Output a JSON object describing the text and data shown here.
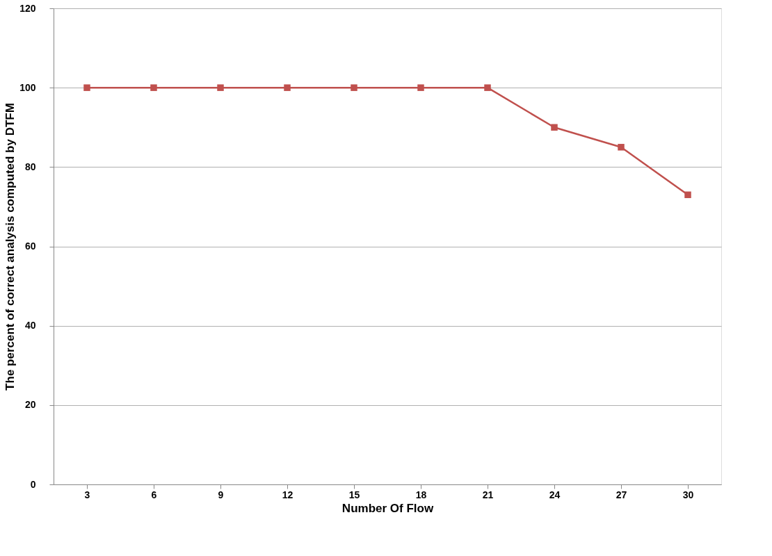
{
  "chart_data": {
    "type": "line",
    "xlabel": "Number Of Flow",
    "ylabel": "The percent of correct analysis computed by DTFM",
    "categories": [
      "3",
      "6",
      "9",
      "12",
      "15",
      "18",
      "21",
      "24",
      "27",
      "30"
    ],
    "series": [
      {
        "color": "#c0504d",
        "values": [
          100,
          100,
          100,
          100,
          100,
          100,
          100,
          90,
          85,
          73
        ]
      }
    ],
    "ylim": [
      0,
      120
    ],
    "yticks": [
      0,
      20,
      40,
      60,
      80,
      100,
      120
    ],
    "grid": "y",
    "marker": "square",
    "line_style": "solid",
    "legend": false
  }
}
